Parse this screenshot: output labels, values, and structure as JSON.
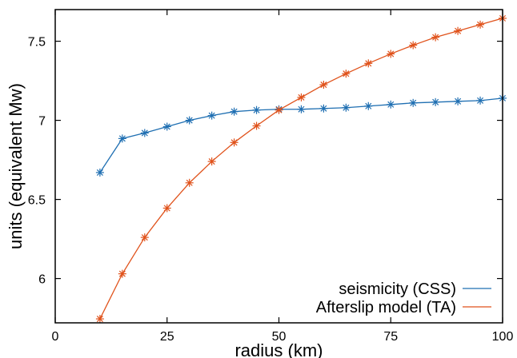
{
  "chart_data": {
    "type": "line",
    "title": "",
    "xlabel": "radius (km)",
    "ylabel": "units (equivalent Mw)",
    "xlim": [
      0,
      100
    ],
    "ylim": [
      5.72,
      7.7
    ],
    "xticks": [
      0,
      25,
      50,
      75,
      100
    ],
    "yticks": [
      6,
      6.5,
      7,
      7.5
    ],
    "grid": false,
    "legend": "bottom-right",
    "series": [
      {
        "name": "seismicity (CSS)",
        "color": "#1f6fb2",
        "marker": "asterisk",
        "x": [
          10,
          15,
          20,
          25,
          30,
          35,
          40,
          45,
          50,
          55,
          60,
          65,
          70,
          75,
          80,
          85,
          90,
          95,
          100
        ],
        "y": [
          6.67,
          6.885,
          6.92,
          6.96,
          7.0,
          7.03,
          7.055,
          7.065,
          7.07,
          7.07,
          7.075,
          7.08,
          7.09,
          7.1,
          7.11,
          7.115,
          7.12,
          7.125,
          7.14
        ]
      },
      {
        "name": "Afterslip model (TA)",
        "color": "#e0521b",
        "marker": "asterisk",
        "x": [
          10,
          15,
          20,
          25,
          30,
          35,
          40,
          45,
          50,
          55,
          60,
          65,
          70,
          75,
          80,
          85,
          90,
          95,
          100
        ],
        "y": [
          5.745,
          6.03,
          6.26,
          6.445,
          6.605,
          6.74,
          6.86,
          6.965,
          7.065,
          7.145,
          7.225,
          7.295,
          7.36,
          7.42,
          7.475,
          7.525,
          7.565,
          7.605,
          7.645
        ]
      }
    ]
  }
}
